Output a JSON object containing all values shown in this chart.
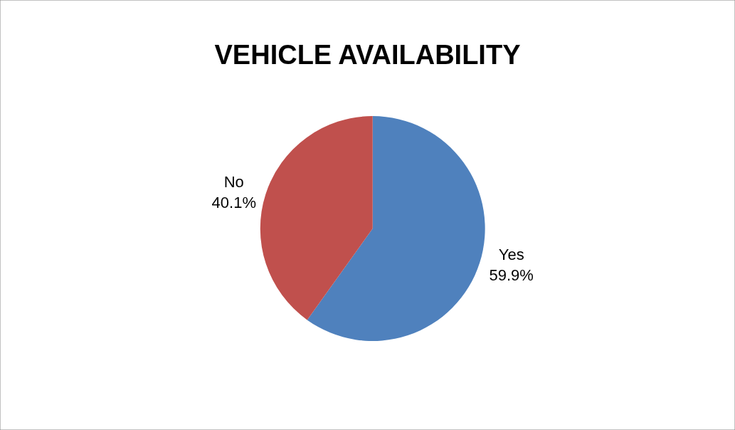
{
  "chart_data": {
    "type": "pie",
    "title": "VEHICLE AVAILABILITY",
    "categories": [
      "Yes",
      "No"
    ],
    "values": [
      59.9,
      40.1
    ],
    "colors": [
      "#4f81bd",
      "#c0504d"
    ],
    "value_labels": [
      "59.9%",
      "40.1%"
    ],
    "legend": false
  }
}
